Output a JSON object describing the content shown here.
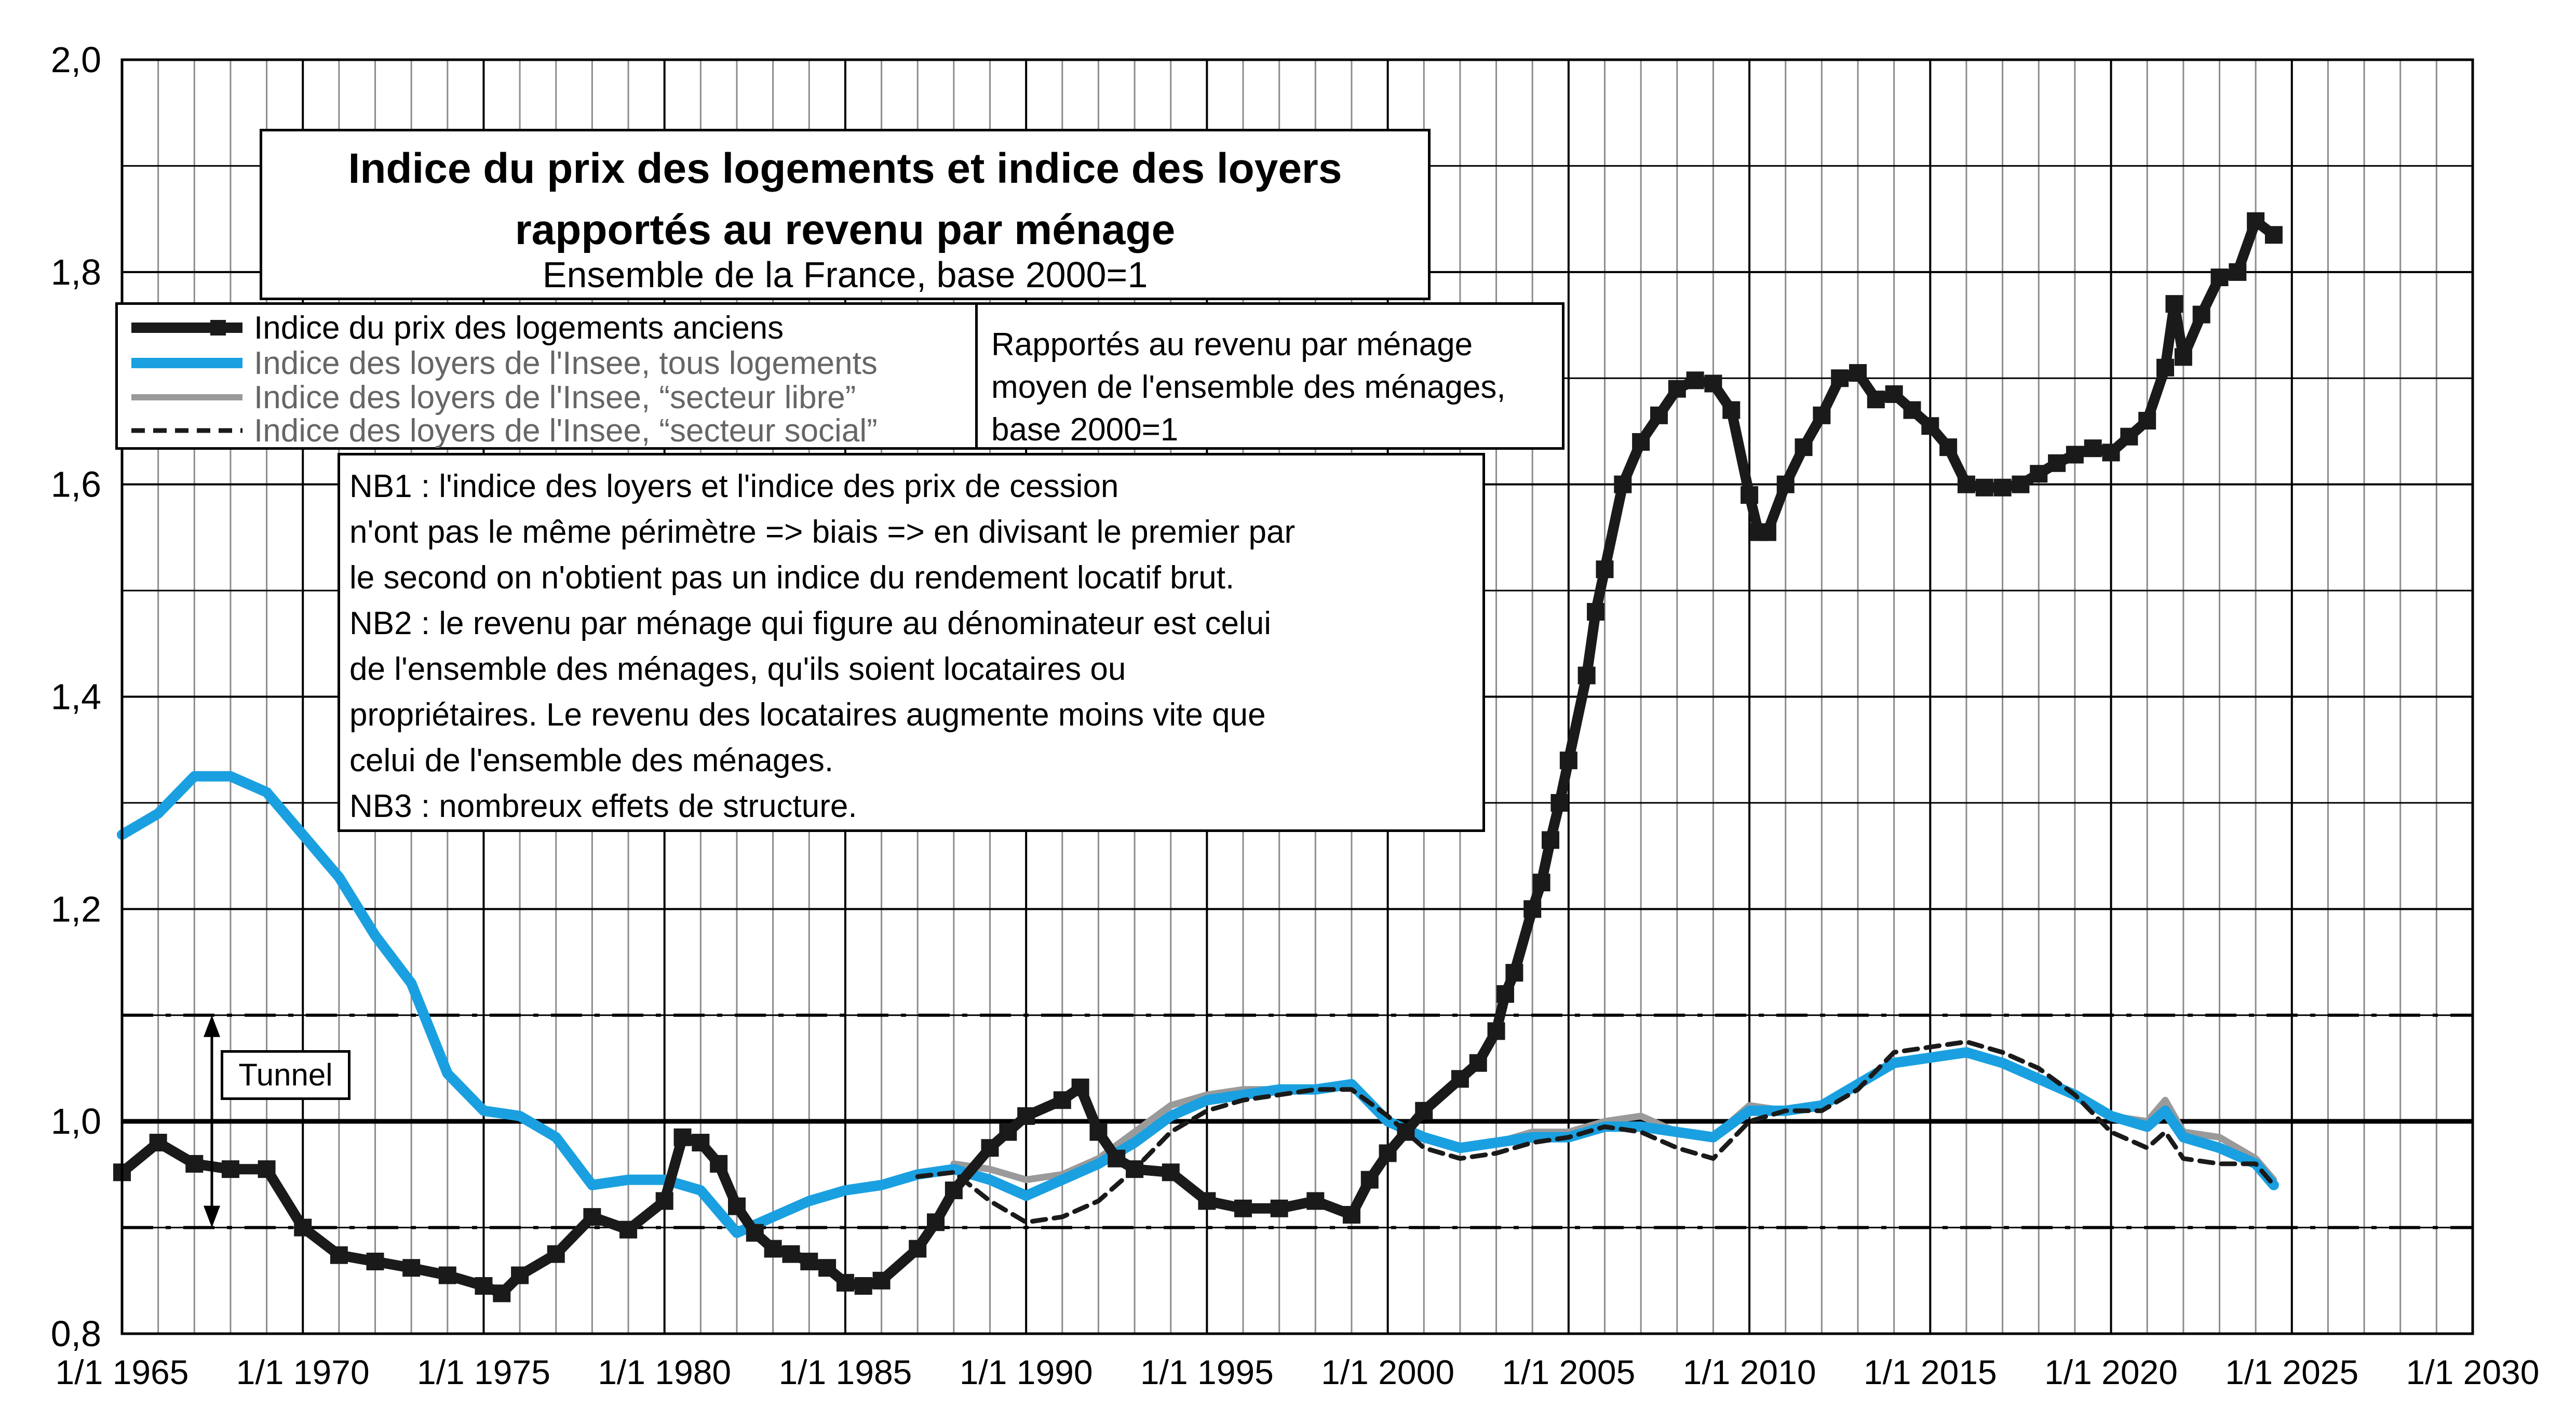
{
  "chart_data": {
    "type": "line",
    "title": [
      "Indice du prix des logements et indice des loyers",
      "rapportés au revenu par ménage"
    ],
    "subtitle": "Ensemble de la France, base 2000=1",
    "xlabel": "",
    "ylabel": "",
    "xlim": [
      1965,
      2030
    ],
    "ylim": [
      0.8,
      2.0
    ],
    "x_ticks": [
      "1/1 1965",
      "1/1 1970",
      "1/1 1975",
      "1/1 1980",
      "1/1 1985",
      "1/1 1990",
      "1/1 1995",
      "1/1 2000",
      "1/1 2005",
      "1/1 2010",
      "1/1 2015",
      "1/1 2020",
      "1/1 2025",
      "1/1 2030"
    ],
    "y_ticks": [
      "0,8",
      "1,0",
      "1,2",
      "1,4",
      "1,6",
      "1,8",
      "2,0"
    ],
    "grid": true,
    "reference_lines": [
      {
        "y": 1.0,
        "style": "solid"
      },
      {
        "y": 1.1,
        "style": "dashdot"
      },
      {
        "y": 0.9,
        "style": "dashdot"
      }
    ],
    "annotation": "Tunnel",
    "series": [
      {
        "name": "Indice du prix des logements anciens",
        "color": "#1a1a1a",
        "points": [
          [
            1965,
            0.952
          ],
          [
            1966,
            0.98
          ],
          [
            1967,
            0.96
          ],
          [
            1968,
            0.955
          ],
          [
            1969,
            0.955
          ],
          [
            1970,
            0.9
          ],
          [
            1971,
            0.874
          ],
          [
            1972,
            0.868
          ],
          [
            1973,
            0.862
          ],
          [
            1974,
            0.855
          ],
          [
            1975,
            0.845
          ],
          [
            1975.5,
            0.838
          ],
          [
            1976,
            0.855
          ],
          [
            1977,
            0.875
          ],
          [
            1978,
            0.91
          ],
          [
            1979,
            0.898
          ],
          [
            1980,
            0.925
          ],
          [
            1980.5,
            0.985
          ],
          [
            1981,
            0.98
          ],
          [
            1981.5,
            0.96
          ],
          [
            1982,
            0.92
          ],
          [
            1982.5,
            0.895
          ],
          [
            1983,
            0.88
          ],
          [
            1983.5,
            0.875
          ],
          [
            1984,
            0.868
          ],
          [
            1984.5,
            0.862
          ],
          [
            1985,
            0.848
          ],
          [
            1985.5,
            0.845
          ],
          [
            1986,
            0.85
          ],
          [
            1987,
            0.88
          ],
          [
            1987.5,
            0.905
          ],
          [
            1988,
            0.935
          ],
          [
            1989,
            0.975
          ],
          [
            1989.5,
            0.99
          ],
          [
            1990,
            1.005
          ],
          [
            1991,
            1.02
          ],
          [
            1991.5,
            1.032
          ],
          [
            1992,
            0.99
          ],
          [
            1992.5,
            0.965
          ],
          [
            1993,
            0.955
          ],
          [
            1994,
            0.952
          ],
          [
            1995,
            0.925
          ],
          [
            1996,
            0.918
          ],
          [
            1997,
            0.918
          ],
          [
            1998,
            0.925
          ],
          [
            1999,
            0.912
          ],
          [
            1999.5,
            0.945
          ],
          [
            2000,
            0.97
          ],
          [
            2000.5,
            0.99
          ],
          [
            2001,
            1.01
          ],
          [
            2002,
            1.04
          ],
          [
            2002.5,
            1.055
          ],
          [
            2003,
            1.085
          ],
          [
            2003.25,
            1.12
          ],
          [
            2003.5,
            1.14
          ],
          [
            2004,
            1.2
          ],
          [
            2004.25,
            1.225
          ],
          [
            2004.5,
            1.265
          ],
          [
            2004.75,
            1.3
          ],
          [
            2005,
            1.34
          ],
          [
            2005.5,
            1.42
          ],
          [
            2005.75,
            1.48
          ],
          [
            2006,
            1.52
          ],
          [
            2006.5,
            1.6
          ],
          [
            2007,
            1.64
          ],
          [
            2007.5,
            1.665
          ],
          [
            2008,
            1.69
          ],
          [
            2008.5,
            1.698
          ],
          [
            2009,
            1.695
          ],
          [
            2009.5,
            1.67
          ],
          [
            2010,
            1.59
          ],
          [
            2010.25,
            1.555
          ],
          [
            2010.5,
            1.555
          ],
          [
            2011,
            1.6
          ],
          [
            2011.5,
            1.635
          ],
          [
            2012,
            1.665
          ],
          [
            2012.5,
            1.7
          ],
          [
            2013,
            1.705
          ],
          [
            2013.5,
            1.68
          ],
          [
            2014,
            1.685
          ],
          [
            2014.5,
            1.67
          ],
          [
            2015,
            1.655
          ],
          [
            2015.5,
            1.635
          ],
          [
            2016,
            1.6
          ],
          [
            2016.5,
            1.597
          ],
          [
            2017,
            1.597
          ],
          [
            2017.5,
            1.6
          ],
          [
            2018,
            1.61
          ],
          [
            2018.5,
            1.62
          ],
          [
            2019,
            1.628
          ],
          [
            2019.5,
            1.634
          ],
          [
            2020,
            1.63
          ],
          [
            2020.5,
            1.645
          ],
          [
            2021,
            1.66
          ],
          [
            2021.5,
            1.71
          ],
          [
            2021.75,
            1.77
          ],
          [
            2022,
            1.72
          ],
          [
            2022.5,
            1.76
          ],
          [
            2023,
            1.795
          ],
          [
            2023.5,
            1.8
          ],
          [
            2024,
            1.848
          ],
          [
            2024.5,
            1.835
          ]
        ]
      },
      {
        "name": "Indice des loyers de l'Insee, tous logements",
        "color": "#1aa0e0",
        "points": [
          [
            1965,
            1.27
          ],
          [
            1966,
            1.29
          ],
          [
            1967,
            1.325
          ],
          [
            1968,
            1.325
          ],
          [
            1969,
            1.31
          ],
          [
            1970,
            1.27
          ],
          [
            1971,
            1.23
          ],
          [
            1972,
            1.175
          ],
          [
            1973,
            1.13
          ],
          [
            1974,
            1.045
          ],
          [
            1975,
            1.01
          ],
          [
            1976,
            1.005
          ],
          [
            1977,
            0.985
          ],
          [
            1978,
            0.94
          ],
          [
            1979,
            0.945
          ],
          [
            1980,
            0.945
          ],
          [
            1981,
            0.935
          ],
          [
            1982,
            0.895
          ],
          [
            1983,
            0.91
          ],
          [
            1984,
            0.925
          ],
          [
            1985,
            0.935
          ],
          [
            1986,
            0.94
          ],
          [
            1987,
            0.95
          ],
          [
            1988,
            0.955
          ],
          [
            1989,
            0.945
          ],
          [
            1990,
            0.93
          ],
          [
            1991,
            0.945
          ],
          [
            1992,
            0.96
          ],
          [
            1993,
            0.98
          ],
          [
            1994,
            1.005
          ],
          [
            1995,
            1.02
          ],
          [
            1996,
            1.025
          ],
          [
            1997,
            1.03
          ],
          [
            1998,
            1.03
          ],
          [
            1999,
            1.035
          ],
          [
            2000,
            1.0
          ],
          [
            2001,
            0.985
          ],
          [
            2002,
            0.975
          ],
          [
            2003,
            0.98
          ],
          [
            2004,
            0.985
          ],
          [
            2005,
            0.985
          ],
          [
            2006,
            0.995
          ],
          [
            2007,
            0.995
          ],
          [
            2008,
            0.99
          ],
          [
            2009,
            0.985
          ],
          [
            2010,
            1.01
          ],
          [
            2011,
            1.01
          ],
          [
            2012,
            1.015
          ],
          [
            2013,
            1.035
          ],
          [
            2014,
            1.055
          ],
          [
            2015,
            1.06
          ],
          [
            2016,
            1.065
          ],
          [
            2017,
            1.055
          ],
          [
            2018,
            1.04
          ],
          [
            2019,
            1.025
          ],
          [
            2020,
            1.005
          ],
          [
            2021,
            0.995
          ],
          [
            2021.5,
            1.01
          ],
          [
            2022,
            0.985
          ],
          [
            2023,
            0.975
          ],
          [
            2024,
            0.96
          ],
          [
            2024.5,
            0.94
          ]
        ]
      },
      {
        "name": "Indice des loyers de l'Insee, “secteur libre”",
        "color": "#9a9a9a",
        "points": [
          [
            1988,
            0.96
          ],
          [
            1989,
            0.955
          ],
          [
            1990,
            0.945
          ],
          [
            1991,
            0.95
          ],
          [
            1992,
            0.965
          ],
          [
            1993,
            0.99
          ],
          [
            1994,
            1.015
          ],
          [
            1995,
            1.025
          ],
          [
            1996,
            1.03
          ],
          [
            1997,
            1.03
          ],
          [
            1998,
            1.03
          ],
          [
            1999,
            1.035
          ],
          [
            2000,
            1.0
          ],
          [
            2001,
            0.985
          ],
          [
            2002,
            0.975
          ],
          [
            2003,
            0.98
          ],
          [
            2004,
            0.99
          ],
          [
            2005,
            0.99
          ],
          [
            2006,
            1.0
          ],
          [
            2007,
            1.005
          ],
          [
            2008,
            0.99
          ],
          [
            2009,
            0.985
          ],
          [
            2010,
            1.015
          ],
          [
            2011,
            1.01
          ],
          [
            2012,
            1.015
          ],
          [
            2013,
            1.035
          ],
          [
            2014,
            1.055
          ],
          [
            2015,
            1.06
          ],
          [
            2016,
            1.065
          ],
          [
            2017,
            1.055
          ],
          [
            2018,
            1.04
          ],
          [
            2019,
            1.025
          ],
          [
            2020,
            1.005
          ],
          [
            2021,
            1.0
          ],
          [
            2021.5,
            1.02
          ],
          [
            2022,
            0.99
          ],
          [
            2023,
            0.985
          ],
          [
            2024,
            0.965
          ],
          [
            2024.5,
            0.945
          ]
        ]
      },
      {
        "name": "Indice des loyers de l'Insee, “secteur social”",
        "color": "#1a1a1a",
        "points": [
          [
            1987,
            0.948
          ],
          [
            1988,
            0.952
          ],
          [
            1989,
            0.925
          ],
          [
            1990,
            0.905
          ],
          [
            1991,
            0.91
          ],
          [
            1992,
            0.925
          ],
          [
            1993,
            0.955
          ],
          [
            1994,
            0.99
          ],
          [
            1995,
            1.01
          ],
          [
            1996,
            1.02
          ],
          [
            1997,
            1.025
          ],
          [
            1998,
            1.03
          ],
          [
            1999,
            1.03
          ],
          [
            2000,
            1.005
          ],
          [
            2001,
            0.975
          ],
          [
            2002,
            0.965
          ],
          [
            2003,
            0.97
          ],
          [
            2004,
            0.98
          ],
          [
            2005,
            0.985
          ],
          [
            2006,
            0.995
          ],
          [
            2007,
            0.99
          ],
          [
            2008,
            0.975
          ],
          [
            2009,
            0.965
          ],
          [
            2010,
            1.0
          ],
          [
            2011,
            1.01
          ],
          [
            2012,
            1.01
          ],
          [
            2013,
            1.03
          ],
          [
            2014,
            1.065
          ],
          [
            2015,
            1.07
          ],
          [
            2016,
            1.075
          ],
          [
            2017,
            1.065
          ],
          [
            2018,
            1.05
          ],
          [
            2019,
            1.025
          ],
          [
            2020,
            0.99
          ],
          [
            2021,
            0.975
          ],
          [
            2021.5,
            0.99
          ],
          [
            2022,
            0.965
          ],
          [
            2023,
            0.96
          ],
          [
            2024,
            0.96
          ],
          [
            2024.5,
            0.94
          ]
        ]
      }
    ]
  },
  "legend": {
    "items": [
      "Indice du prix des logements anciens",
      "Indice des loyers de l'Insee, tous logements",
      "Indice des loyers de l'Insee, “secteur libre”",
      "Indice des loyers de l'Insee, “secteur social”"
    ]
  },
  "ratio_note": [
    "Rapportés au revenu par ménage",
    "moyen de l'ensemble des ménages,",
    "base 2000=1"
  ],
  "nb_note": [
    "NB1 : l'indice des loyers et l'indice des prix de cession",
    "n'ont pas le même périmètre => biais => en divisant le premier par",
    "le second on n'obtient pas un indice du rendement locatif brut.",
    "NB2 : le revenu par ménage qui figure au dénominateur est celui",
    "de l'ensemble des ménages, qu'ils soient locataires ou",
    "propriétaires.  Le revenu des locataires augmente moins vite que",
    "celui de l'ensemble des ménages.",
    "NB3 : nombreux effets de structure."
  ],
  "tunnel_label": "Tunnel"
}
